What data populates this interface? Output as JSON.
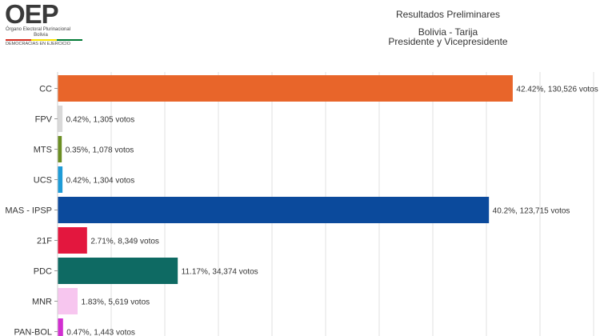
{
  "logo": {
    "name": "OEP",
    "subtitle": "Órgano Electoral Plurinacional",
    "country": "Bolivia",
    "tagline": "DEMOCRACIAS EN EJERCICIO"
  },
  "header": {
    "title": "Resultados Preliminares",
    "location": "Bolivia - Tarija",
    "election": "Presidente y Vicepresidente"
  },
  "chart_data": {
    "type": "bar",
    "orientation": "horizontal",
    "title": "",
    "xlabel": "",
    "ylabel": "",
    "xlim": [
      0,
      0.5
    ],
    "grid": true,
    "categories": [
      "CC",
      "FPV",
      "MTS",
      "UCS",
      "MAS - IPSP",
      "21F",
      "PDC",
      "MNR",
      "PAN-BOL"
    ],
    "values": [
      0.4242,
      0.0042,
      0.0035,
      0.0042,
      0.402,
      0.0271,
      0.1117,
      0.0183,
      0.0047
    ],
    "data_labels": [
      "42.42%,  130,526 votos",
      "0.42%,  1,305 votos",
      "0.35%,  1,078 votos",
      "0.42%,  1,304 votos",
      "40.2%,  123,715 votos",
      "2.71%,  8,349 votos",
      "11.17%,  34,374 votos",
      "1.83%,  5,619 votos",
      "0.47%,  1,443 votos"
    ],
    "colors": [
      "#e8652a",
      "#d9d9d9",
      "#6b8e23",
      "#1e9bd7",
      "#0b4a9c",
      "#e3173e",
      "#0e6a63",
      "#f7c6ef",
      "#d12fd0"
    ]
  }
}
